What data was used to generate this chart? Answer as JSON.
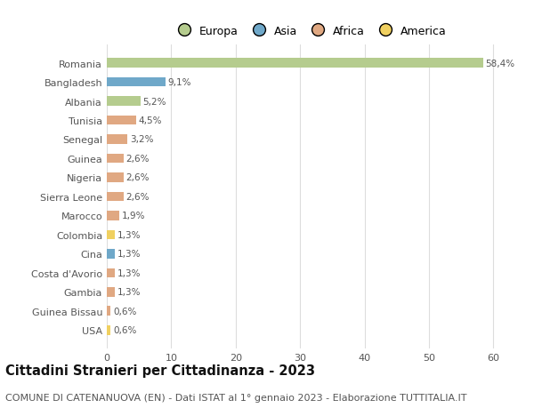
{
  "categories": [
    "Romania",
    "Bangladesh",
    "Albania",
    "Tunisia",
    "Senegal",
    "Guinea",
    "Nigeria",
    "Sierra Leone",
    "Marocco",
    "Colombia",
    "Cina",
    "Costa d'Avorio",
    "Gambia",
    "Guinea Bissau",
    "USA"
  ],
  "values": [
    58.4,
    9.1,
    5.2,
    4.5,
    3.2,
    2.6,
    2.6,
    2.6,
    1.9,
    1.3,
    1.3,
    1.3,
    1.3,
    0.6,
    0.6
  ],
  "labels": [
    "58,4%",
    "9,1%",
    "5,2%",
    "4,5%",
    "3,2%",
    "2,6%",
    "2,6%",
    "2,6%",
    "1,9%",
    "1,3%",
    "1,3%",
    "1,3%",
    "1,3%",
    "0,6%",
    "0,6%"
  ],
  "continents": [
    "Europa",
    "Asia",
    "Europa",
    "Africa",
    "Africa",
    "Africa",
    "Africa",
    "Africa",
    "Africa",
    "America",
    "Asia",
    "Africa",
    "Africa",
    "Africa",
    "America"
  ],
  "continent_colors": {
    "Europa": "#b5cc8e",
    "Asia": "#6fa8c9",
    "Africa": "#e0a882",
    "America": "#f0d060"
  },
  "legend_order": [
    "Europa",
    "Asia",
    "Africa",
    "America"
  ],
  "legend_colors": [
    "#b5cc8e",
    "#6fa8c9",
    "#e0a882",
    "#f0d060"
  ],
  "xlim": [
    0,
    63
  ],
  "xticks": [
    0,
    10,
    20,
    30,
    40,
    50,
    60
  ],
  "title": "Cittadini Stranieri per Cittadinanza - 2023",
  "subtitle": "COMUNE DI CATENANUOVA (EN) - Dati ISTAT al 1° gennaio 2023 - Elaborazione TUTTITALIA.IT",
  "background_color": "#ffffff",
  "grid_color": "#dddddd",
  "bar_height": 0.5,
  "title_fontsize": 10.5,
  "subtitle_fontsize": 8,
  "label_fontsize": 7.5,
  "tick_fontsize": 8,
  "legend_fontsize": 9
}
